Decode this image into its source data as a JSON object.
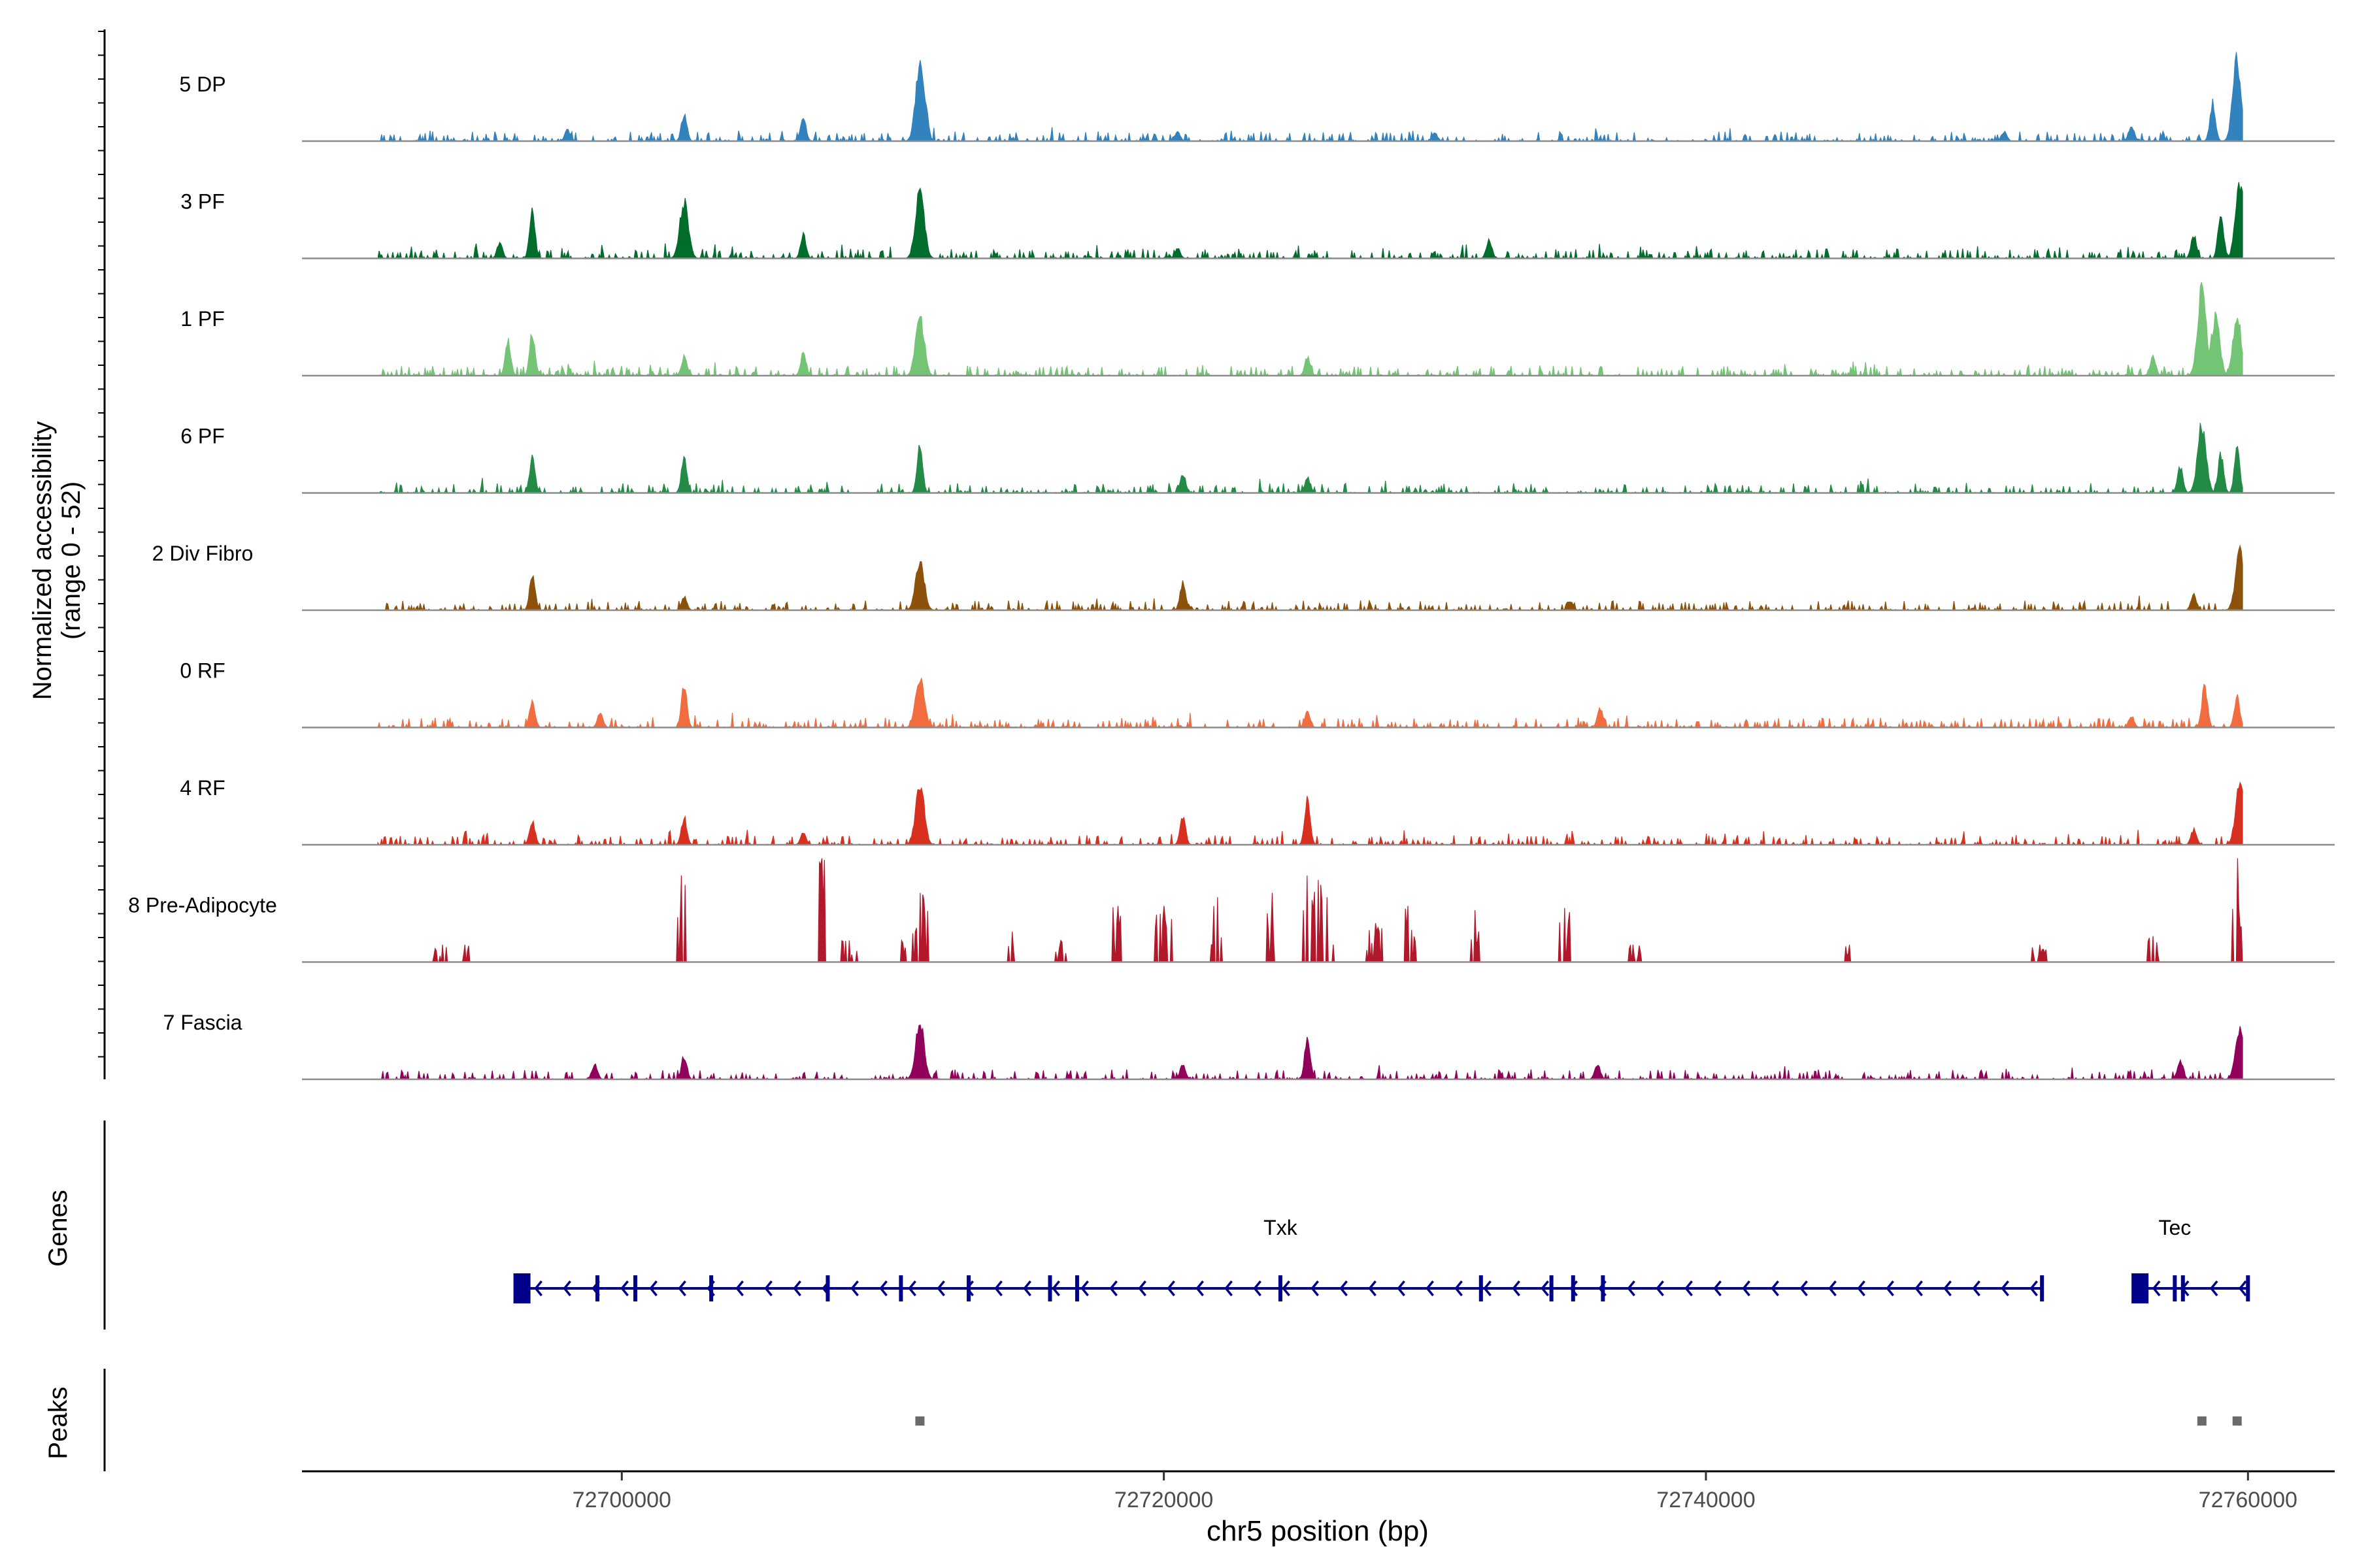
{
  "chart_data": {
    "type": "area",
    "title": "",
    "ylabel": "Normalized accessibility",
    "ylabel_range": "(range 0 - 52)",
    "ylim": [
      0,
      52
    ],
    "xlabel": "chr5 position (bp)",
    "xlim": [
      72688200,
      72763200
    ],
    "xticks": [
      72700000,
      72720000,
      72740000,
      72760000
    ],
    "x_start": 72691000,
    "x_end": 72759800,
    "tracks": [
      {
        "name": "5 DP",
        "color": "#3182bd",
        "style": "smooth",
        "peaks": [
          [
            72702300,
            14
          ],
          [
            72706700,
            12
          ],
          [
            72711000,
            40
          ],
          [
            72711200,
            20
          ],
          [
            72698000,
            6
          ],
          [
            72720500,
            5
          ],
          [
            72730000,
            4
          ],
          [
            72751000,
            5
          ],
          [
            72755700,
            8
          ],
          [
            72758700,
            20
          ],
          [
            72759600,
            42
          ]
        ]
      },
      {
        "name": "3 PF",
        "color": "#006d2c",
        "style": "smooth",
        "peaks": [
          [
            72696700,
            25
          ],
          [
            72702300,
            30
          ],
          [
            72706700,
            12
          ],
          [
            72711000,
            38
          ],
          [
            72695500,
            8
          ],
          [
            72720500,
            5
          ],
          [
            72732000,
            10
          ],
          [
            72758000,
            12
          ],
          [
            72759000,
            24
          ],
          [
            72759700,
            40
          ]
        ]
      },
      {
        "name": "1 PF",
        "color": "#74c476",
        "style": "smooth",
        "peaks": [
          [
            72695800,
            18
          ],
          [
            72696700,
            22
          ],
          [
            72702300,
            10
          ],
          [
            72706700,
            12
          ],
          [
            72711000,
            32
          ],
          [
            72725300,
            10
          ],
          [
            72758300,
            45
          ],
          [
            72758800,
            30
          ],
          [
            72759600,
            30
          ],
          [
            72756500,
            10
          ]
        ]
      },
      {
        "name": "6 PF",
        "color": "#238b45",
        "style": "smooth",
        "peaks": [
          [
            72696700,
            18
          ],
          [
            72702300,
            18
          ],
          [
            72711000,
            24
          ],
          [
            72720700,
            10
          ],
          [
            72725300,
            8
          ],
          [
            72758300,
            35
          ],
          [
            72759000,
            20
          ],
          [
            72759600,
            22
          ],
          [
            72757500,
            14
          ]
        ]
      },
      {
        "name": "2 Div Fibro",
        "color": "#8c510a",
        "style": "smooth",
        "peaks": [
          [
            72696700,
            18
          ],
          [
            72711000,
            26
          ],
          [
            72720700,
            15
          ],
          [
            72702300,
            7
          ],
          [
            72759700,
            30
          ],
          [
            72758000,
            8
          ],
          [
            72735000,
            5
          ]
        ]
      },
      {
        "name": "0 RF",
        "color": "#f16c3f",
        "style": "smooth",
        "peaks": [
          [
            72696700,
            14
          ],
          [
            72699200,
            8
          ],
          [
            72702300,
            22
          ],
          [
            72711000,
            26
          ],
          [
            72725300,
            8
          ],
          [
            72736100,
            10
          ],
          [
            72758400,
            22
          ],
          [
            72759600,
            16
          ],
          [
            72755700,
            6
          ]
        ]
      },
      {
        "name": "4 RF",
        "color": "#d7301f",
        "style": "smooth",
        "peaks": [
          [
            72696700,
            12
          ],
          [
            72702300,
            14
          ],
          [
            72711000,
            32
          ],
          [
            72720700,
            14
          ],
          [
            72725300,
            24
          ],
          [
            72758000,
            8
          ],
          [
            72759700,
            32
          ],
          [
            72706700,
            6
          ]
        ]
      },
      {
        "name": "8 Pre-Adipocyte",
        "color": "#b2182b",
        "style": "spiky",
        "peaks": [
          [
            72707400,
            48
          ],
          [
            72711000,
            32
          ],
          [
            72702200,
            40
          ],
          [
            72725300,
            40
          ],
          [
            72725700,
            38
          ],
          [
            72726000,
            30
          ],
          [
            72724000,
            32
          ],
          [
            72722000,
            30
          ],
          [
            72720000,
            26
          ],
          [
            72718300,
            26
          ],
          [
            72729000,
            26
          ],
          [
            72731500,
            24
          ],
          [
            72734800,
            25
          ],
          [
            72756500,
            12
          ],
          [
            72759600,
            48
          ],
          [
            72693400,
            8
          ],
          [
            72694200,
            8
          ],
          [
            72708400,
            10
          ],
          [
            72710300,
            10
          ],
          [
            72714400,
            14
          ],
          [
            72716200,
            10
          ],
          [
            72727800,
            18
          ],
          [
            72737300,
            8
          ],
          [
            72745300,
            8
          ],
          [
            72752300,
            8
          ]
        ]
      },
      {
        "name": "7 Fascia",
        "color": "#91005a",
        "style": "smooth",
        "peaks": [
          [
            72711000,
            30
          ],
          [
            72725300,
            22
          ],
          [
            72702300,
            12
          ],
          [
            72699000,
            8
          ],
          [
            72720700,
            8
          ],
          [
            72759700,
            26
          ],
          [
            72757500,
            10
          ],
          [
            72736000,
            8
          ]
        ]
      }
    ],
    "genes": [
      {
        "name": "Txk",
        "start": 72696100,
        "end": 72752400,
        "strand": "-",
        "exons": [
          72696100,
          72699100,
          72700500,
          72703300,
          72707600,
          72710300,
          72712800,
          72715800,
          72716800,
          72724300,
          72731700,
          72734300,
          72735100,
          72736200,
          72752400
        ]
      },
      {
        "name": "Tec",
        "start": 72755800,
        "end": 72760000,
        "strand": "-",
        "exons": [
          72755800,
          72757300,
          72757600,
          72760000
        ]
      }
    ],
    "peaks_track": [
      72711000,
      72758300,
      72759600
    ],
    "genes_label": "Genes",
    "peaks_label": "Peaks"
  }
}
